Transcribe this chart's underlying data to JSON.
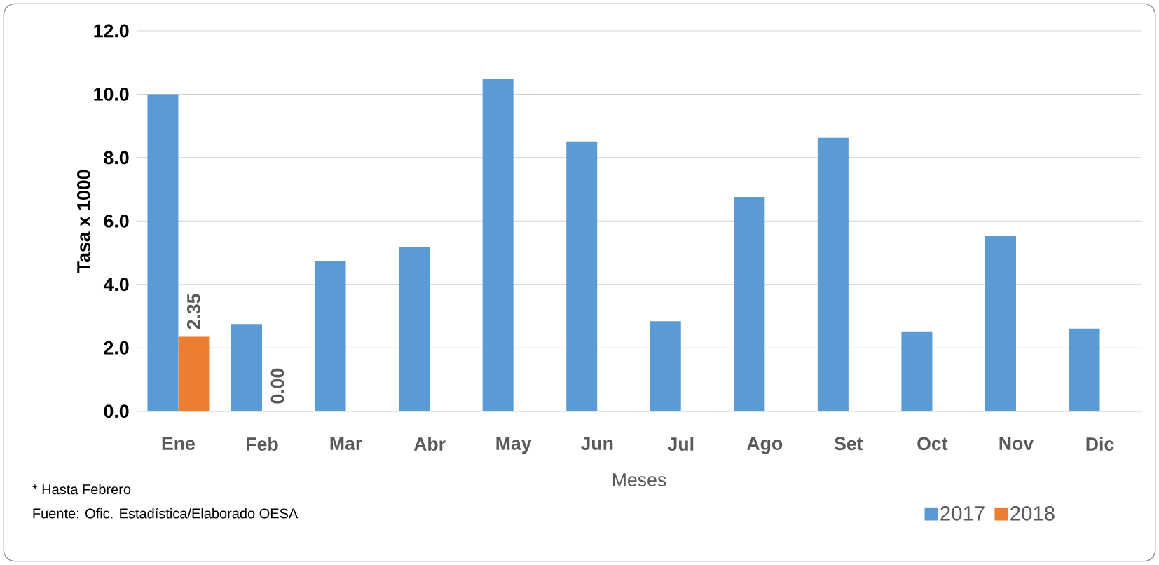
{
  "chart_data": {
    "type": "bar",
    "xlabel": "Meses",
    "ylabel": "Tasa x 1000",
    "categories": [
      "Ene",
      "Feb",
      "Mar",
      "Abr",
      "May",
      "Jun",
      "Jul",
      "Ago",
      "Set",
      "Oct",
      "Nov",
      "Dic"
    ],
    "series": [
      {
        "name": "2017",
        "color": "#5b9bd5",
        "values": [
          10.0,
          2.75,
          4.73,
          5.17,
          10.49,
          8.51,
          2.84,
          6.76,
          8.62,
          2.52,
          5.52,
          2.61
        ]
      },
      {
        "name": "2018",
        "color": "#ed7d31",
        "values": [
          2.35,
          0.0,
          null,
          null,
          null,
          null,
          null,
          null,
          null,
          null,
          null,
          null
        ],
        "value_labels": [
          "2.35",
          "0.00",
          null,
          null,
          null,
          null,
          null,
          null,
          null,
          null,
          null,
          null
        ]
      }
    ],
    "ylim": [
      0,
      12
    ],
    "yticks": [
      {
        "value": 0,
        "label": "0.0"
      },
      {
        "value": 2,
        "label": "2.0"
      },
      {
        "value": 4,
        "label": "4.0"
      },
      {
        "value": 6,
        "label": "6.0"
      },
      {
        "value": 8,
        "label": "8.0"
      },
      {
        "value": 10,
        "label": "10.0"
      },
      {
        "value": 12,
        "label": "12.0"
      }
    ],
    "grid": "y",
    "legend": "bottom right",
    "annotations": [
      "* Hasta Febrero",
      "Fuente: Ofic. Estadística/Elaborado OESA"
    ]
  }
}
